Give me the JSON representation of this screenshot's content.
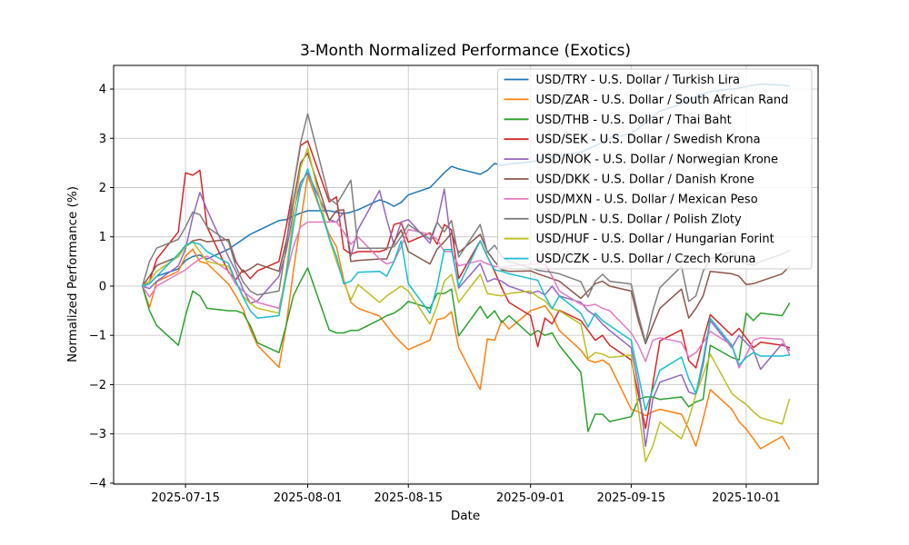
{
  "chart": {
    "title": "3-Month Normalized Performance (Exotics)",
    "xlabel": "Date",
    "ylabel": "Normalized Performance (%)"
  },
  "chart_data": {
    "type": "line",
    "title": "3-Month Normalized Performance (Exotics)",
    "xlabel": "Date",
    "ylabel": "Normalized Performance (%)",
    "grid": true,
    "legend_position": "upper right",
    "ylim": [
      -4.02,
      4.48
    ],
    "xlim": [
      "2025-07-05",
      "2025-10-11"
    ],
    "y_ticks": [
      -4,
      -3,
      -2,
      -1,
      0,
      1,
      2,
      3,
      4
    ],
    "x_ticks": [
      "2025-07-15",
      "2025-08-01",
      "2025-08-15",
      "2025-09-01",
      "2025-09-15",
      "2025-10-01"
    ],
    "x": [
      "2025-07-09",
      "2025-07-10",
      "2025-07-11",
      "2025-07-14",
      "2025-07-15",
      "2025-07-16",
      "2025-07-17",
      "2025-07-18",
      "2025-07-21",
      "2025-07-22",
      "2025-07-23",
      "2025-07-24",
      "2025-07-25",
      "2025-07-28",
      "2025-07-29",
      "2025-07-30",
      "2025-07-31",
      "2025-08-01",
      "2025-08-04",
      "2025-08-05",
      "2025-08-06",
      "2025-08-07",
      "2025-08-08",
      "2025-08-11",
      "2025-08-12",
      "2025-08-13",
      "2025-08-14",
      "2025-08-15",
      "2025-08-18",
      "2025-08-19",
      "2025-08-20",
      "2025-08-21",
      "2025-08-22",
      "2025-08-25",
      "2025-08-26",
      "2025-08-27",
      "2025-08-28",
      "2025-08-29",
      "2025-09-01",
      "2025-09-02",
      "2025-09-03",
      "2025-09-04",
      "2025-09-05",
      "2025-09-08",
      "2025-09-09",
      "2025-09-10",
      "2025-09-11",
      "2025-09-12",
      "2025-09-15",
      "2025-09-16",
      "2025-09-17",
      "2025-09-18",
      "2025-09-19",
      "2025-09-22",
      "2025-09-23",
      "2025-09-24",
      "2025-09-25",
      "2025-09-26",
      "2025-09-29",
      "2025-09-30",
      "2025-10-01",
      "2025-10-02",
      "2025-10-03",
      "2025-10-06",
      "2025-10-07"
    ],
    "series": [
      {
        "pair": "USD/TRY",
        "name": "U.S. Dollar / Turkish Lira",
        "label": "USD/TRY - U.S. Dollar / Turkish Lira",
        "color": "#1f77b4",
        "values": [
          0,
          0.05,
          0.2,
          0.35,
          0.52,
          0.6,
          0.63,
          0.55,
          0.75,
          0.85,
          0.95,
          1.05,
          1.12,
          1.33,
          1.35,
          1.42,
          1.48,
          1.53,
          1.53,
          1.5,
          1.47,
          1.5,
          1.55,
          1.75,
          1.7,
          1.62,
          1.7,
          1.85,
          2,
          2.15,
          2.3,
          2.43,
          2.38,
          2.27,
          2.35,
          2.49,
          2.45,
          2.48,
          2.52,
          2.55,
          2.6,
          2.62,
          2.65,
          2.72,
          2.78,
          2.85,
          2.92,
          3,
          3.1,
          3.2,
          3.32,
          3.45,
          3.55,
          3.7,
          3.78,
          3.85,
          3.9,
          3.95,
          4,
          4.02,
          4.05,
          4.08,
          4.1,
          4.08,
          4.06
        ]
      },
      {
        "pair": "USD/ZAR",
        "name": "U.S. Dollar / South African Rand",
        "label": "USD/ZAR - U.S. Dollar / South African Rand",
        "color": "#ff7f0e",
        "values": [
          0,
          -0.43,
          0.09,
          0.3,
          0.61,
          0.75,
          0.5,
          0.46,
          0.04,
          -0.2,
          -0.46,
          -0.87,
          -1.2,
          -1.65,
          -0.8,
          0.3,
          1.3,
          2.25,
          1.05,
          0.8,
          0.13,
          -0.33,
          -0.45,
          -0.61,
          -0.8,
          -1,
          -1.15,
          -1.29,
          -1.1,
          -0.68,
          -0.65,
          -0.52,
          -1.25,
          -2.1,
          -1.07,
          -1.1,
          -0.7,
          -0.87,
          -0.5,
          -0.45,
          -0.4,
          -0.6,
          -0.9,
          -1.3,
          -1.5,
          -1.55,
          -1.5,
          -1.6,
          -2.5,
          -2.55,
          -2.63,
          -2.55,
          -2.5,
          -2.6,
          -2.9,
          -3.25,
          -2.7,
          -2.1,
          -2.5,
          -2.75,
          -2.9,
          -3.1,
          -3.3,
          -3.05,
          -3.3
        ]
      },
      {
        "pair": "USD/THB",
        "name": "U.S. Dollar / Thai Baht",
        "label": "USD/THB - U.S. Dollar / Thai Baht",
        "color": "#2ca02c",
        "values": [
          0,
          -0.5,
          -0.8,
          -1.2,
          -0.6,
          -0.1,
          -0.2,
          -0.45,
          -0.5,
          -0.5,
          -0.55,
          -0.8,
          -1.15,
          -1.35,
          -0.8,
          -0.2,
          0.1,
          0.37,
          -0.89,
          -0.95,
          -0.95,
          -0.9,
          -0.9,
          -0.68,
          -0.6,
          -0.55,
          -0.45,
          -0.31,
          -0.45,
          -0.15,
          -0.15,
          -0.06,
          -1.01,
          -0.41,
          -0.65,
          -0.5,
          -0.74,
          -0.6,
          -1,
          -0.9,
          -1,
          -0.95,
          -1.2,
          -1.75,
          -2.95,
          -2.6,
          -2.6,
          -2.75,
          -2.65,
          -2.3,
          -2.25,
          -2.25,
          -2.3,
          -2.25,
          -2.45,
          -2.35,
          -2.3,
          -1.2,
          -1.45,
          -1.5,
          -0.55,
          -0.7,
          -0.55,
          -0.6,
          -0.35
        ]
      },
      {
        "pair": "USD/SEK",
        "name": "U.S. Dollar / Swedish Krona",
        "label": "USD/SEK - U.S. Dollar / Swedish Krona",
        "color": "#d62728",
        "values": [
          0,
          0.1,
          0.55,
          1.1,
          2.3,
          2.25,
          2.35,
          1.2,
          0.28,
          0.13,
          0.33,
          0.15,
          0.31,
          0.5,
          1.2,
          2,
          2.85,
          2.95,
          1.71,
          1.81,
          0.75,
          0.65,
          0.7,
          0.7,
          0.75,
          1.25,
          1.29,
          0.89,
          1.08,
          0.85,
          1.25,
          1.14,
          0.15,
          0.92,
          0.6,
          0.3,
          -0.04,
          -0.33,
          -0.6,
          -1.23,
          -0.65,
          -0.77,
          -0.49,
          -0.7,
          -0.9,
          -1.1,
          -1,
          -1.2,
          -1.5,
          -2.2,
          -2.89,
          -2,
          -1.11,
          -0.89,
          -1.51,
          -1.66,
          -1.1,
          -0.58,
          -1,
          -0.86,
          -1.05,
          -1.25,
          -1.14,
          -1.2,
          -1.25
        ]
      },
      {
        "pair": "USD/NOK",
        "name": "U.S. Dollar / Norwegian Krone",
        "label": "USD/NOK - U.S. Dollar / Norwegian Krone",
        "color": "#9467bd",
        "values": [
          0,
          -0.05,
          0.1,
          0.41,
          0.75,
          1.4,
          1.9,
          1.55,
          0.59,
          0.3,
          -0.06,
          -0.35,
          -0.3,
          0.2,
          0.7,
          1.5,
          2.1,
          2.3,
          1.35,
          1.3,
          1.5,
          0.61,
          1.15,
          1.94,
          1.35,
          0.85,
          1.3,
          1.35,
          0.87,
          1.3,
          1.97,
          0.8,
          -0.04,
          0.46,
          0.09,
          0.15,
          0.1,
          0,
          -0.15,
          -0.1,
          -0.18,
          0,
          -0.2,
          -0.33,
          -0.5,
          -0.6,
          -0.77,
          -0.9,
          -1.25,
          -2,
          -3.25,
          -2.3,
          -1.95,
          -1.8,
          -2.15,
          -2.2,
          -1.6,
          -0.7,
          -1.25,
          -1,
          -1.15,
          -1.3,
          -1.69,
          -1.17,
          -1.3
        ]
      },
      {
        "pair": "USD/DKK",
        "name": "U.S. Dollar / Danish Krone",
        "label": "USD/DKK - U.S. Dollar / Danish Krone",
        "color": "#8c564b",
        "values": [
          0,
          0.2,
          0.42,
          0.6,
          0.8,
          0.92,
          0.95,
          0.9,
          0.95,
          0.5,
          0.28,
          0.35,
          0.45,
          0.3,
          0.9,
          1.7,
          2.5,
          2.7,
          1.33,
          1.53,
          1.55,
          0.5,
          0.52,
          0.55,
          0.55,
          0.9,
          1.14,
          0.7,
          0.45,
          0.75,
          0.9,
          1.07,
          0.68,
          1.05,
          0.7,
          0.5,
          0.33,
          0.3,
          0.31,
          0.25,
          0.2,
          0.15,
          0.1,
          -0.25,
          -0.1,
          0.05,
          0.1,
          0,
          -0.1,
          -0.7,
          -1.17,
          -0.8,
          -0.45,
          -0.06,
          -0.65,
          -0.45,
          -0.2,
          0.3,
          0.25,
          0.2,
          0.03,
          0.05,
          0.1,
          0.25,
          0.4
        ]
      },
      {
        "pair": "USD/MXN",
        "name": "U.S. Dollar / Mexican Peso",
        "label": "USD/MXN - U.S. Dollar / Mexican Peso",
        "color": "#e377c2",
        "values": [
          0,
          -0.22,
          0,
          0.25,
          0.33,
          0.45,
          0.55,
          0.61,
          0.3,
          0.04,
          -0.1,
          -0.22,
          -0.33,
          -0.45,
          0.2,
          0.8,
          1.2,
          1.3,
          1.3,
          1.3,
          1.1,
          0.85,
          1,
          0.55,
          0.45,
          0.5,
          0.8,
          1.15,
          1.05,
          0.95,
          0.7,
          0.7,
          0.41,
          0.52,
          0.45,
          0.4,
          0.38,
          0.4,
          0.45,
          0.45,
          0.45,
          0.2,
          -0.1,
          -0.37,
          -0.4,
          -0.37,
          -0.45,
          -0.5,
          -0.95,
          -1.2,
          -1.53,
          -1.1,
          -1.05,
          -1.14,
          -1.44,
          -1.35,
          -1.15,
          -0.92,
          -1.2,
          -1.66,
          -1.4,
          -1.1,
          -1.05,
          -1.08,
          -1.38
        ]
      },
      {
        "pair": "USD/PLN",
        "name": "U.S. Dollar / Polish Zloty",
        "label": "USD/PLN - U.S. Dollar / Polish Zloty",
        "color": "#7f7f7f",
        "values": [
          0,
          0.5,
          0.77,
          0.95,
          1.2,
          1.5,
          1.45,
          1.2,
          0.9,
          0.4,
          0.09,
          -0.1,
          -0.18,
          -0.1,
          0.8,
          2,
          2.9,
          3.5,
          1.78,
          1.66,
          1.9,
          2.15,
          0.77,
          0.77,
          0.77,
          0.8,
          1,
          1.25,
          0.95,
          1.3,
          1.1,
          1.33,
          0.59,
          1.25,
          0.68,
          0.83,
          0.6,
          0.5,
          0.37,
          0.32,
          0.3,
          0.28,
          0.25,
          0.09,
          -0.22,
          0.1,
          0.24,
          0.1,
          0.04,
          -0.6,
          -1.14,
          -0.5,
          -0.03,
          0.4,
          -0.31,
          -0.2,
          0.3,
          0.55,
          0.7,
          0.6,
          0.45,
          0.42,
          0.5,
          0.65,
          0.72
        ]
      },
      {
        "pair": "USD/HUF",
        "name": "U.S. Dollar / Hungarian Forint",
        "label": "USD/HUF - U.S. Dollar / Hungarian Forint",
        "color": "#bcbd22",
        "values": [
          0,
          0.1,
          0.3,
          0.6,
          0.8,
          0.9,
          0.7,
          0.5,
          0.4,
          0.1,
          -0.2,
          -0.35,
          -0.45,
          -0.55,
          0.3,
          1.4,
          2.4,
          2.8,
          0.96,
          0.5,
          0.09,
          -0.28,
          0.03,
          -0.33,
          -0.2,
          -0.1,
          0,
          -0.1,
          -0.77,
          -0.4,
          0.1,
          0.24,
          -0.33,
          0.24,
          -0.15,
          -0.18,
          -0.2,
          -0.15,
          -0.1,
          -0.22,
          -0.3,
          -0.46,
          -0.5,
          -0.77,
          -1.47,
          -1.35,
          -1.38,
          -1.45,
          -1.4,
          -2.5,
          -3.56,
          -3.25,
          -2.76,
          -3.1,
          -2.7,
          -2.2,
          -1.8,
          -1.38,
          -2.18,
          -2.3,
          -2.4,
          -2.55,
          -2.67,
          -2.8,
          -2.3
        ]
      },
      {
        "pair": "USD/CZK",
        "name": "U.S. Dollar / Czech Koruna",
        "label": "USD/CZK - U.S. Dollar / Czech Koruna",
        "color": "#17becf",
        "values": [
          0,
          0.05,
          0.2,
          0.65,
          0.83,
          0.89,
          0.85,
          0.7,
          0.46,
          0.1,
          -0.22,
          -0.5,
          -0.65,
          -0.6,
          0.2,
          1.2,
          2,
          2.38,
          0.98,
          0.6,
          0.05,
          0.1,
          0.28,
          0.3,
          0.2,
          0.5,
          0.92,
          0.05,
          -0.55,
          0,
          0.74,
          0.74,
          0,
          0.92,
          0.59,
          0.33,
          0.3,
          0.25,
          0.15,
          0.12,
          -0.2,
          -0.46,
          -0.2,
          -0.55,
          -0.83,
          -0.55,
          -0.7,
          -0.8,
          -1.1,
          -1.8,
          -2.52,
          -2.1,
          -1.71,
          -1.44,
          -1.88,
          -2.18,
          -1.5,
          -0.65,
          -1.2,
          -1.6,
          -1.45,
          -1.35,
          -1.42,
          -1.42,
          -1.4
        ]
      }
    ]
  }
}
